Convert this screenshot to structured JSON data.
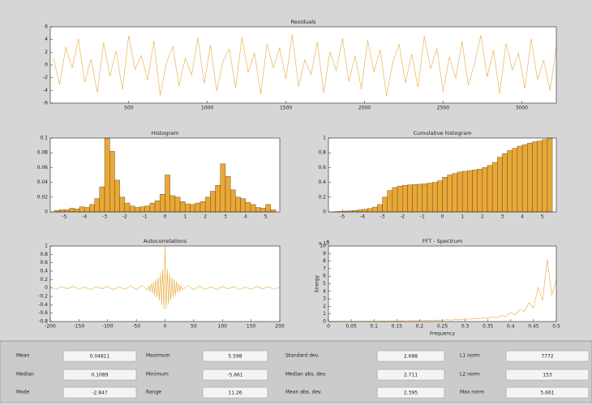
{
  "chart_data": [
    {
      "type": "line",
      "title": "Residuals",
      "color": "#e8a838",
      "x": [
        20,
        60,
        100,
        140,
        180,
        220,
        260,
        300,
        340,
        380,
        420,
        460,
        500,
        540,
        580,
        620,
        660,
        700,
        740,
        780,
        820,
        860,
        900,
        940,
        980,
        1020,
        1060,
        1100,
        1140,
        1180,
        1220,
        1260,
        1300,
        1340,
        1380,
        1420,
        1460,
        1500,
        1540,
        1580,
        1620,
        1660,
        1700,
        1740,
        1780,
        1820,
        1860,
        1900,
        1940,
        1980,
        2020,
        2060,
        2100,
        2140,
        2180,
        2220,
        2260,
        2300,
        2340,
        2380,
        2420,
        2460,
        2500,
        2540,
        2580,
        2620,
        2660,
        2700,
        2740,
        2780,
        2820,
        2860,
        2900,
        2940,
        2980,
        3020,
        3060,
        3100,
        3140,
        3180,
        3220
      ],
      "values": [
        1.2,
        -3.1,
        2.8,
        -0.5,
        4.1,
        -2.7,
        0.9,
        -4.3,
        3.5,
        -1.8,
        2.2,
        -3.9,
        4.6,
        -0.7,
        1.5,
        -2.4,
        3.8,
        -4.8,
        0.3,
        2.9,
        -3.3,
        1.1,
        -1.6,
        4.3,
        -2.9,
        3.1,
        -4.1,
        0.6,
        2.5,
        -3.6,
        4.4,
        -1.2,
        1.9,
        -4.6,
        3.3,
        -0.4,
        2.7,
        -2.2,
        4.8,
        -3.4,
        0.8,
        -1.5,
        3.6,
        -4.4,
        2.1,
        -0.9,
        4.2,
        -2.6,
        1.4,
        -3.8,
        3.9,
        -1.1,
        2.4,
        -4.9,
        0.5,
        3.2,
        -2.8,
        1.7,
        -3.5,
        4.5,
        -0.6,
        2.6,
        -4.2,
        1.3,
        -2.1,
        3.7,
        -3.2,
        0.2,
        4.7,
        -1.9,
        2.3,
        -4.5,
        3.4,
        -0.8,
        1.8,
        -3.7,
        4.1,
        -2.3,
        0.7,
        -4.0,
        2.9
      ],
      "xlim": [
        1,
        3220
      ],
      "xticks": [
        500,
        1000,
        1500,
        2000,
        2500,
        3000
      ],
      "ylim": [
        -6,
        6
      ],
      "yticks": [
        -6,
        -4,
        -2,
        0,
        2,
        4,
        6
      ]
    },
    {
      "type": "histogram",
      "title": "Histogram",
      "color": "#e8a838",
      "bins": [
        -5.5,
        -5.25,
        -5,
        -4.75,
        -4.5,
        -4.25,
        -4,
        -3.75,
        -3.5,
        -3.25,
        -3,
        -2.75,
        -2.5,
        -2.25,
        -2,
        -1.75,
        -1.5,
        -1.25,
        -1,
        -0.75,
        -0.5,
        -0.25,
        0,
        0.25,
        0.5,
        0.75,
        1,
        1.25,
        1.5,
        1.75,
        2,
        2.25,
        2.5,
        2.75,
        3,
        3.25,
        3.5,
        3.75,
        4,
        4.25,
        4.5,
        4.75,
        5,
        5.25,
        5.5
      ],
      "values": [
        0.002,
        0.003,
        0.003,
        0.005,
        0.004,
        0.007,
        0.006,
        0.01,
        0.018,
        0.034,
        0.1,
        0.082,
        0.043,
        0.02,
        0.012,
        0.008,
        0.006,
        0.007,
        0.008,
        0.012,
        0.015,
        0.024,
        0.05,
        0.022,
        0.02,
        0.014,
        0.011,
        0.01,
        0.012,
        0.014,
        0.02,
        0.028,
        0.036,
        0.065,
        0.048,
        0.03,
        0.02,
        0.018,
        0.013,
        0.01,
        0.006,
        0.005,
        0.01,
        0.003
      ],
      "xlim": [
        -5.7,
        5.7
      ],
      "xticks": [
        -5,
        -4,
        -3,
        -2,
        -1,
        0,
        1,
        2,
        3,
        4,
        5
      ],
      "ylim": [
        0,
        0.1
      ],
      "yticks": [
        0,
        0.02,
        0.04,
        0.06,
        0.08,
        0.1
      ]
    },
    {
      "type": "histogram",
      "title": "Cumulative histogram",
      "color": "#e8a838",
      "bins": [
        -5.5,
        -5.25,
        -5,
        -4.75,
        -4.5,
        -4.25,
        -4,
        -3.75,
        -3.5,
        -3.25,
        -3,
        -2.75,
        -2.5,
        -2.25,
        -2,
        -1.75,
        -1.5,
        -1.25,
        -1,
        -0.75,
        -0.5,
        -0.25,
        0,
        0.25,
        0.5,
        0.75,
        1,
        1.25,
        1.5,
        1.75,
        2,
        2.25,
        2.5,
        2.75,
        3,
        3.25,
        3.5,
        3.75,
        4,
        4.25,
        4.5,
        4.75,
        5,
        5.25,
        5.5
      ],
      "values": [
        0.003,
        0.006,
        0.01,
        0.015,
        0.02,
        0.028,
        0.035,
        0.045,
        0.065,
        0.1,
        0.2,
        0.29,
        0.33,
        0.35,
        0.36,
        0.365,
        0.37,
        0.375,
        0.38,
        0.39,
        0.4,
        0.42,
        0.47,
        0.5,
        0.52,
        0.54,
        0.55,
        0.56,
        0.57,
        0.58,
        0.6,
        0.63,
        0.67,
        0.74,
        0.79,
        0.83,
        0.86,
        0.89,
        0.91,
        0.93,
        0.95,
        0.96,
        0.98,
        1
      ],
      "xlim": [
        -5.7,
        5.7
      ],
      "xticks": [
        -5,
        -4,
        -3,
        -2,
        -1,
        0,
        1,
        2,
        3,
        4,
        5
      ],
      "ylim": [
        0,
        1
      ],
      "yticks": [
        0,
        0.2,
        0.4,
        0.6,
        0.8,
        1
      ]
    },
    {
      "type": "line",
      "title": "Autocorrelations",
      "color": "#e8a838",
      "x": [
        -200,
        -190,
        -180,
        -170,
        -160,
        -150,
        -140,
        -130,
        -120,
        -110,
        -100,
        -90,
        -80,
        -70,
        -60,
        -50,
        -40,
        -30,
        -28,
        -26,
        -24,
        -22,
        -20,
        -18,
        -16,
        -14,
        -12,
        -10,
        -8,
        -6,
        -4,
        -2,
        0,
        2,
        4,
        6,
        8,
        10,
        12,
        14,
        16,
        18,
        20,
        22,
        24,
        26,
        28,
        30,
        40,
        50,
        60,
        70,
        80,
        90,
        100,
        110,
        120,
        130,
        140,
        150,
        160,
        170,
        180,
        190,
        200
      ],
      "values": [
        0.02,
        -0.03,
        0.03,
        -0.02,
        0.04,
        -0.03,
        0.02,
        -0.04,
        0.03,
        -0.02,
        0.04,
        -0.04,
        0.03,
        -0.03,
        0.05,
        -0.04,
        0.06,
        -0.05,
        0.06,
        -0.08,
        0.1,
        -0.12,
        0.15,
        -0.18,
        0.2,
        -0.22,
        0.25,
        -0.3,
        0.35,
        -0.4,
        0.45,
        -0.5,
        1,
        -0.5,
        0.45,
        -0.4,
        0.35,
        -0.3,
        0.25,
        -0.22,
        0.2,
        -0.18,
        0.15,
        -0.12,
        0.1,
        -0.08,
        0.06,
        -0.05,
        0.06,
        -0.04,
        0.05,
        -0.03,
        0.03,
        -0.04,
        0.04,
        -0.02,
        0.03,
        -0.04,
        0.02,
        -0.03,
        0.04,
        -0.02,
        0.03,
        -0.03,
        0.02
      ],
      "xlim": [
        -200,
        200
      ],
      "xticks": [
        -200,
        -150,
        -100,
        -50,
        0,
        50,
        100,
        150,
        200
      ],
      "ylim": [
        -0.8,
        1
      ],
      "yticks": [
        -0.8,
        -0.6,
        -0.4,
        -0.2,
        0,
        0.2,
        0.4,
        0.6,
        0.8,
        1
      ]
    },
    {
      "type": "line",
      "title": "FFT - Spectrum",
      "color": "#e8a838",
      "x_label": "Frequency",
      "y_label": "Energy",
      "y_multiplier": "x 10",
      "y_exponent": 6,
      "x": [
        0,
        0.01,
        0.02,
        0.03,
        0.04,
        0.05,
        0.06,
        0.07,
        0.08,
        0.09,
        0.1,
        0.11,
        0.12,
        0.13,
        0.14,
        0.15,
        0.16,
        0.17,
        0.18,
        0.19,
        0.2,
        0.21,
        0.22,
        0.23,
        0.24,
        0.25,
        0.26,
        0.27,
        0.28,
        0.29,
        0.3,
        0.31,
        0.32,
        0.33,
        0.34,
        0.35,
        0.36,
        0.37,
        0.38,
        0.39,
        0.4,
        0.41,
        0.42,
        0.43,
        0.44,
        0.45,
        0.46,
        0.47,
        0.48,
        0.49,
        0.5
      ],
      "values": [
        0,
        0.02,
        0.01,
        0.03,
        0.02,
        0.01,
        0.03,
        0.02,
        0.04,
        0.03,
        0.05,
        0.04,
        0.06,
        0.05,
        0.08,
        0.06,
        0.1,
        0.08,
        0.12,
        0.1,
        0.15,
        0.12,
        0.18,
        0.14,
        0.2,
        0.16,
        0.25,
        0.2,
        0.3,
        0.25,
        0.35,
        0.3,
        0.4,
        0.35,
        0.5,
        0.45,
        0.6,
        0.5,
        0.8,
        0.7,
        1.2,
        0.9,
        1.6,
        1.3,
        2.5,
        1.8,
        4.5,
        2.8,
        8.2,
        3.5,
        5.5
      ],
      "xlim": [
        0,
        0.5
      ],
      "xticks": [
        0,
        0.05,
        0.1,
        0.15,
        0.2,
        0.25,
        0.3,
        0.35,
        0.4,
        0.45,
        0.5
      ],
      "ylim": [
        0,
        10
      ],
      "yticks": [
        0,
        1,
        2,
        3,
        4,
        5,
        6,
        7,
        8,
        9,
        10
      ]
    }
  ],
  "stats": [
    {
      "label": "Mean",
      "value": 0.04811
    },
    {
      "label": "Maximum",
      "value": 5.598
    },
    {
      "label": "Standard dev.",
      "value": 2.688
    },
    {
      "label": "L1 norm",
      "value": 7772
    },
    {
      "label": "Median",
      "value": 0.1089
    },
    {
      "label": "Minimum",
      "value": -5.661
    },
    {
      "label": "Median abs. dev.",
      "value": 2.711
    },
    {
      "label": "L2 norm",
      "value": 153
    },
    {
      "label": "Mode",
      "value": -2.847
    },
    {
      "label": "Range",
      "value": 11.26
    },
    {
      "label": "Mean abs. dev.",
      "value": 2.395
    },
    {
      "label": "Max norm",
      "value": 5.661
    }
  ]
}
